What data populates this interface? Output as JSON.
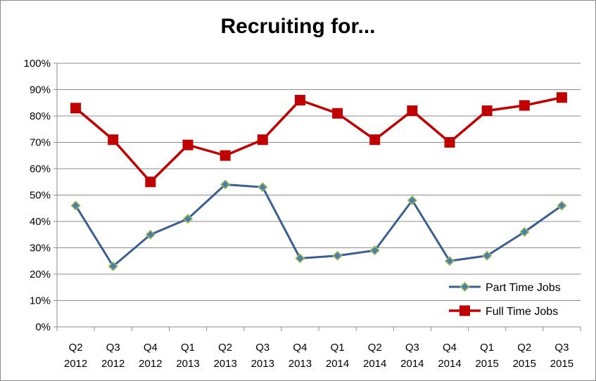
{
  "chart_data": {
    "type": "line",
    "title": "Recruiting for...",
    "categories": [
      [
        "Q2",
        "2012"
      ],
      [
        "Q3",
        "2012"
      ],
      [
        "Q4",
        "2012"
      ],
      [
        "Q1",
        "2013"
      ],
      [
        "Q2",
        "2013"
      ],
      [
        "Q3",
        "2013"
      ],
      [
        "Q4",
        "2013"
      ],
      [
        "Q1",
        "2014"
      ],
      [
        "Q2",
        "2014"
      ],
      [
        "Q3",
        "2014"
      ],
      [
        "Q4",
        "2014"
      ],
      [
        "Q1",
        "2015"
      ],
      [
        "Q2",
        "2015"
      ],
      [
        "Q3",
        "2015"
      ]
    ],
    "y_ticks": [
      "0%",
      "10%",
      "20%",
      "30%",
      "40%",
      "50%",
      "60%",
      "70%",
      "80%",
      "90%",
      "100%"
    ],
    "ylim": [
      0,
      100
    ],
    "grid": true,
    "legend_position": "bottom-right",
    "series": [
      {
        "name": "Part Time Jobs",
        "color": "#3b5f8f",
        "marker": "diamond",
        "marker_fill": "#4f7fa8",
        "marker_edge": "#9bbb59",
        "values": [
          46,
          23,
          35,
          41,
          54,
          53,
          26,
          27,
          29,
          48,
          25,
          27,
          36,
          46
        ]
      },
      {
        "name": "Full Time Jobs",
        "color": "#c00000",
        "marker": "square",
        "marker_fill": "#c00000",
        "marker_edge": "#c00000",
        "values": [
          83,
          71,
          55,
          69,
          65,
          71,
          86,
          81,
          71,
          82,
          70,
          82,
          84,
          87
        ]
      }
    ]
  }
}
